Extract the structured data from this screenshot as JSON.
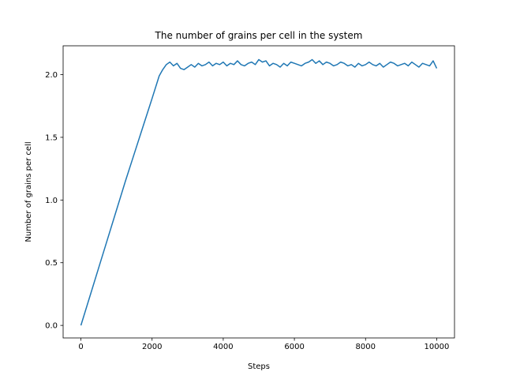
{
  "chart_data": {
    "type": "line",
    "title": "The number of grains per cell in the system",
    "xlabel": "Steps",
    "ylabel": "Number of grains per cell",
    "xlim": [
      -500,
      10500
    ],
    "ylim": [
      -0.1,
      2.23
    ],
    "xticks": [
      0,
      2000,
      4000,
      6000,
      8000,
      10000
    ],
    "yticks": [
      0.0,
      0.5,
      1.0,
      1.5,
      2.0
    ],
    "xtick_labels": [
      "0",
      "2000",
      "4000",
      "6000",
      "8000",
      "10000"
    ],
    "ytick_labels": [
      "0.0",
      "0.5",
      "1.0",
      "1.5",
      "2.0"
    ],
    "grid": false,
    "series": [
      {
        "color": "#1f77b4",
        "x": [
          0,
          250,
          500,
          750,
          1000,
          1250,
          1500,
          1750,
          2000,
          2200,
          2300,
          2400,
          2500,
          2600,
          2700,
          2800,
          2900,
          3000,
          3100,
          3200,
          3300,
          3400,
          3500,
          3600,
          3700,
          3800,
          3900,
          4000,
          4100,
          4200,
          4300,
          4400,
          4500,
          4600,
          4700,
          4800,
          4900,
          5000,
          5100,
          5200,
          5300,
          5400,
          5500,
          5600,
          5700,
          5800,
          5900,
          6000,
          6100,
          6200,
          6300,
          6400,
          6500,
          6600,
          6700,
          6800,
          6900,
          7000,
          7100,
          7200,
          7300,
          7400,
          7500,
          7600,
          7700,
          7800,
          7900,
          8000,
          8100,
          8200,
          8300,
          8400,
          8500,
          8600,
          8700,
          8800,
          8900,
          9000,
          9100,
          9200,
          9300,
          9400,
          9500,
          9600,
          9700,
          9800,
          9900,
          10000
        ],
        "y": [
          0.0,
          0.23,
          0.46,
          0.69,
          0.92,
          1.15,
          1.37,
          1.59,
          1.81,
          1.99,
          2.04,
          2.08,
          2.1,
          2.07,
          2.09,
          2.05,
          2.04,
          2.06,
          2.08,
          2.06,
          2.09,
          2.07,
          2.08,
          2.1,
          2.07,
          2.09,
          2.08,
          2.1,
          2.07,
          2.09,
          2.08,
          2.11,
          2.08,
          2.07,
          2.09,
          2.1,
          2.08,
          2.12,
          2.1,
          2.11,
          2.07,
          2.09,
          2.08,
          2.06,
          2.09,
          2.07,
          2.1,
          2.09,
          2.08,
          2.07,
          2.09,
          2.1,
          2.12,
          2.09,
          2.11,
          2.08,
          2.1,
          2.09,
          2.07,
          2.08,
          2.1,
          2.09,
          2.07,
          2.08,
          2.06,
          2.09,
          2.07,
          2.08,
          2.1,
          2.08,
          2.07,
          2.09,
          2.06,
          2.08,
          2.1,
          2.09,
          2.07,
          2.08,
          2.09,
          2.07,
          2.1,
          2.08,
          2.06,
          2.09,
          2.08,
          2.07,
          2.11,
          2.05
        ]
      }
    ]
  }
}
